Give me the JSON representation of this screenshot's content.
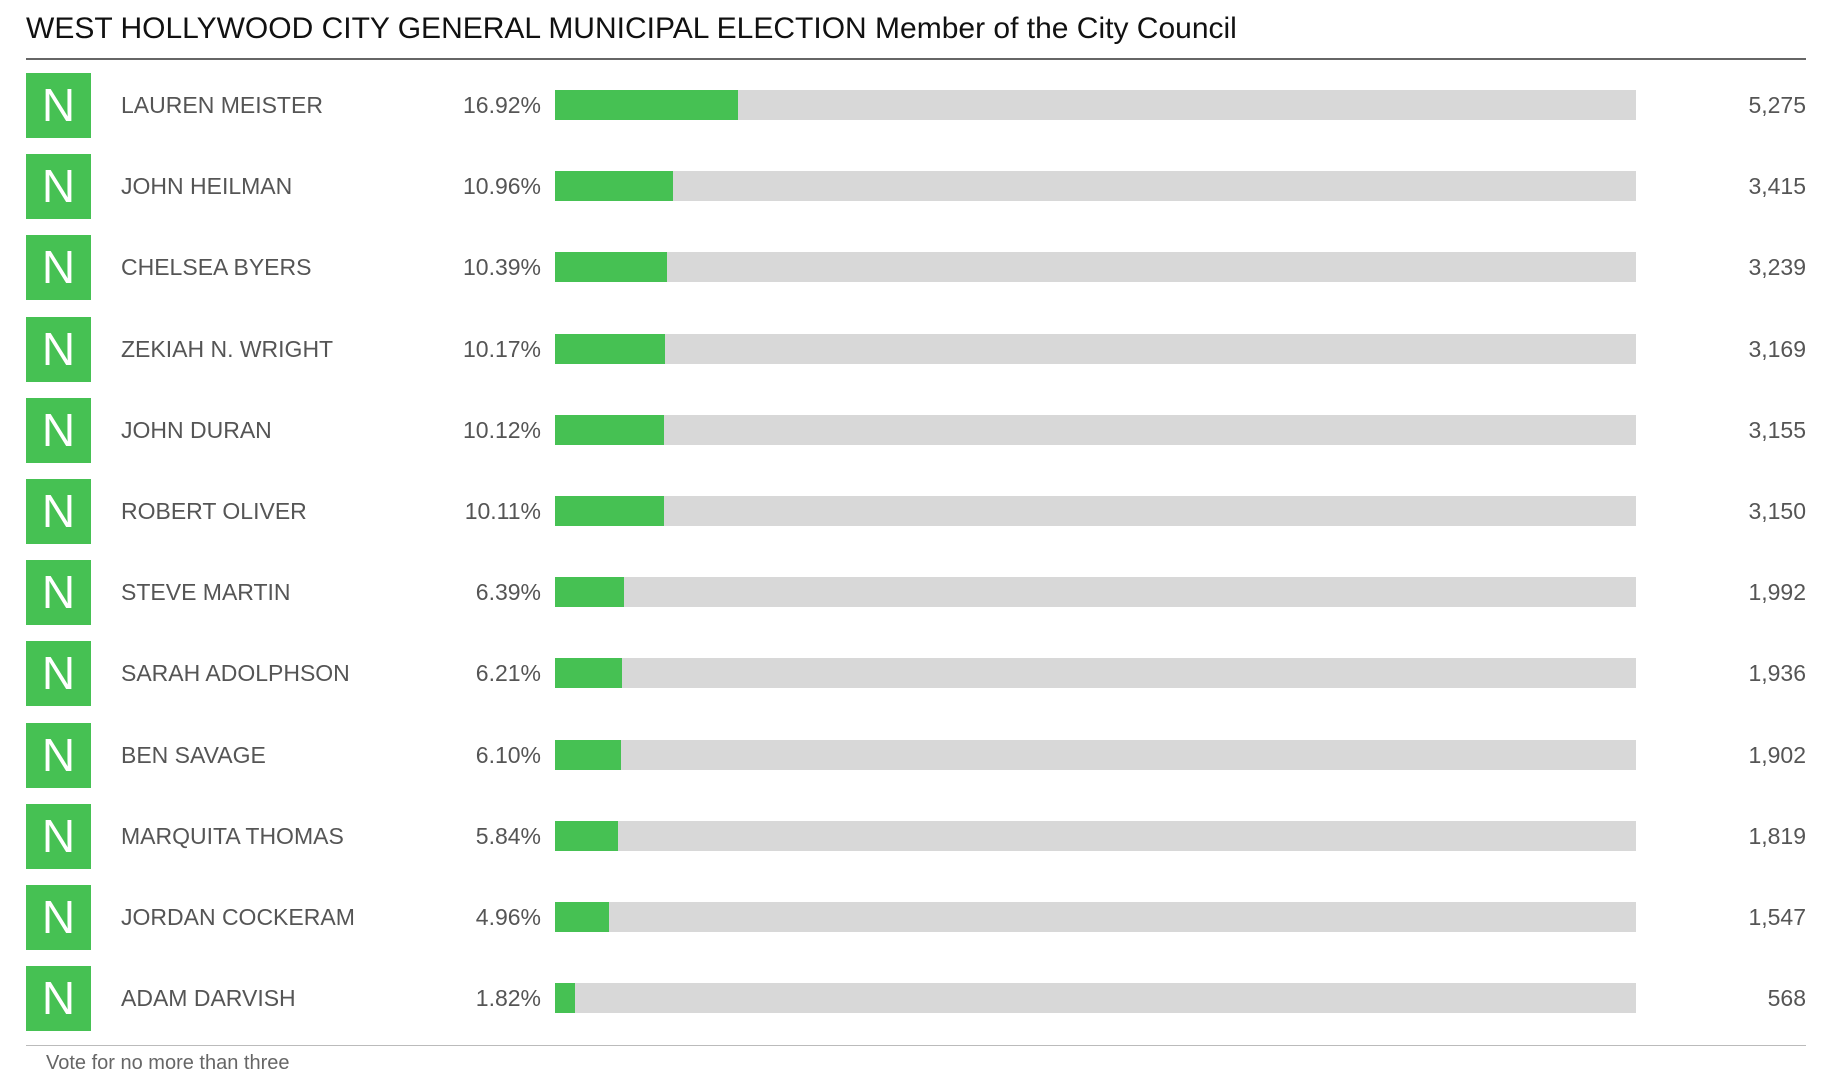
{
  "title": "WEST HOLLYWOOD CITY GENERAL MUNICIPAL ELECTION",
  "subtitle": "Member of the City Council",
  "footnote": "Vote for no more than three",
  "colors": {
    "bar_fill": "#46c153",
    "bar_track": "#d8d8d8",
    "badge": "#46c153"
  },
  "chart_data": {
    "type": "bar",
    "orientation": "horizontal",
    "xlim": [
      0,
      100
    ],
    "categories": [
      "LAUREN MEISTER",
      "JOHN HEILMAN",
      "CHELSEA BYERS",
      "ZEKIAH N. WRIGHT",
      "JOHN DURAN",
      "ROBERT OLIVER",
      "STEVE MARTIN",
      "SARAH ADOLPHSON",
      "BEN SAVAGE",
      "MARQUITA THOMAS",
      "JORDAN COCKERAM",
      "ADAM DARVISH"
    ],
    "rows": [
      {
        "badge": "N",
        "name": "LAUREN MEISTER",
        "pct_label": "16.92%",
        "pct": 16.92,
        "votes": "5,275"
      },
      {
        "badge": "N",
        "name": "JOHN HEILMAN",
        "pct_label": "10.96%",
        "pct": 10.96,
        "votes": "3,415"
      },
      {
        "badge": "N",
        "name": "CHELSEA BYERS",
        "pct_label": "10.39%",
        "pct": 10.39,
        "votes": "3,239"
      },
      {
        "badge": "N",
        "name": "ZEKIAH N. WRIGHT",
        "pct_label": "10.17%",
        "pct": 10.17,
        "votes": "3,169"
      },
      {
        "badge": "N",
        "name": "JOHN DURAN",
        "pct_label": "10.12%",
        "pct": 10.12,
        "votes": "3,155"
      },
      {
        "badge": "N",
        "name": "ROBERT OLIVER",
        "pct_label": "10.11%",
        "pct": 10.11,
        "votes": "3,150"
      },
      {
        "badge": "N",
        "name": "STEVE MARTIN",
        "pct_label": "6.39%",
        "pct": 6.39,
        "votes": "1,992"
      },
      {
        "badge": "N",
        "name": "SARAH ADOLPHSON",
        "pct_label": "6.21%",
        "pct": 6.21,
        "votes": "1,936"
      },
      {
        "badge": "N",
        "name": "BEN SAVAGE",
        "pct_label": "6.10%",
        "pct": 6.1,
        "votes": "1,902"
      },
      {
        "badge": "N",
        "name": "MARQUITA THOMAS",
        "pct_label": "5.84%",
        "pct": 5.84,
        "votes": "1,819"
      },
      {
        "badge": "N",
        "name": "JORDAN COCKERAM",
        "pct_label": "4.96%",
        "pct": 4.96,
        "votes": "1,547"
      },
      {
        "badge": "N",
        "name": "ADAM DARVISH",
        "pct_label": "1.82%",
        "pct": 1.82,
        "votes": "568"
      }
    ]
  }
}
